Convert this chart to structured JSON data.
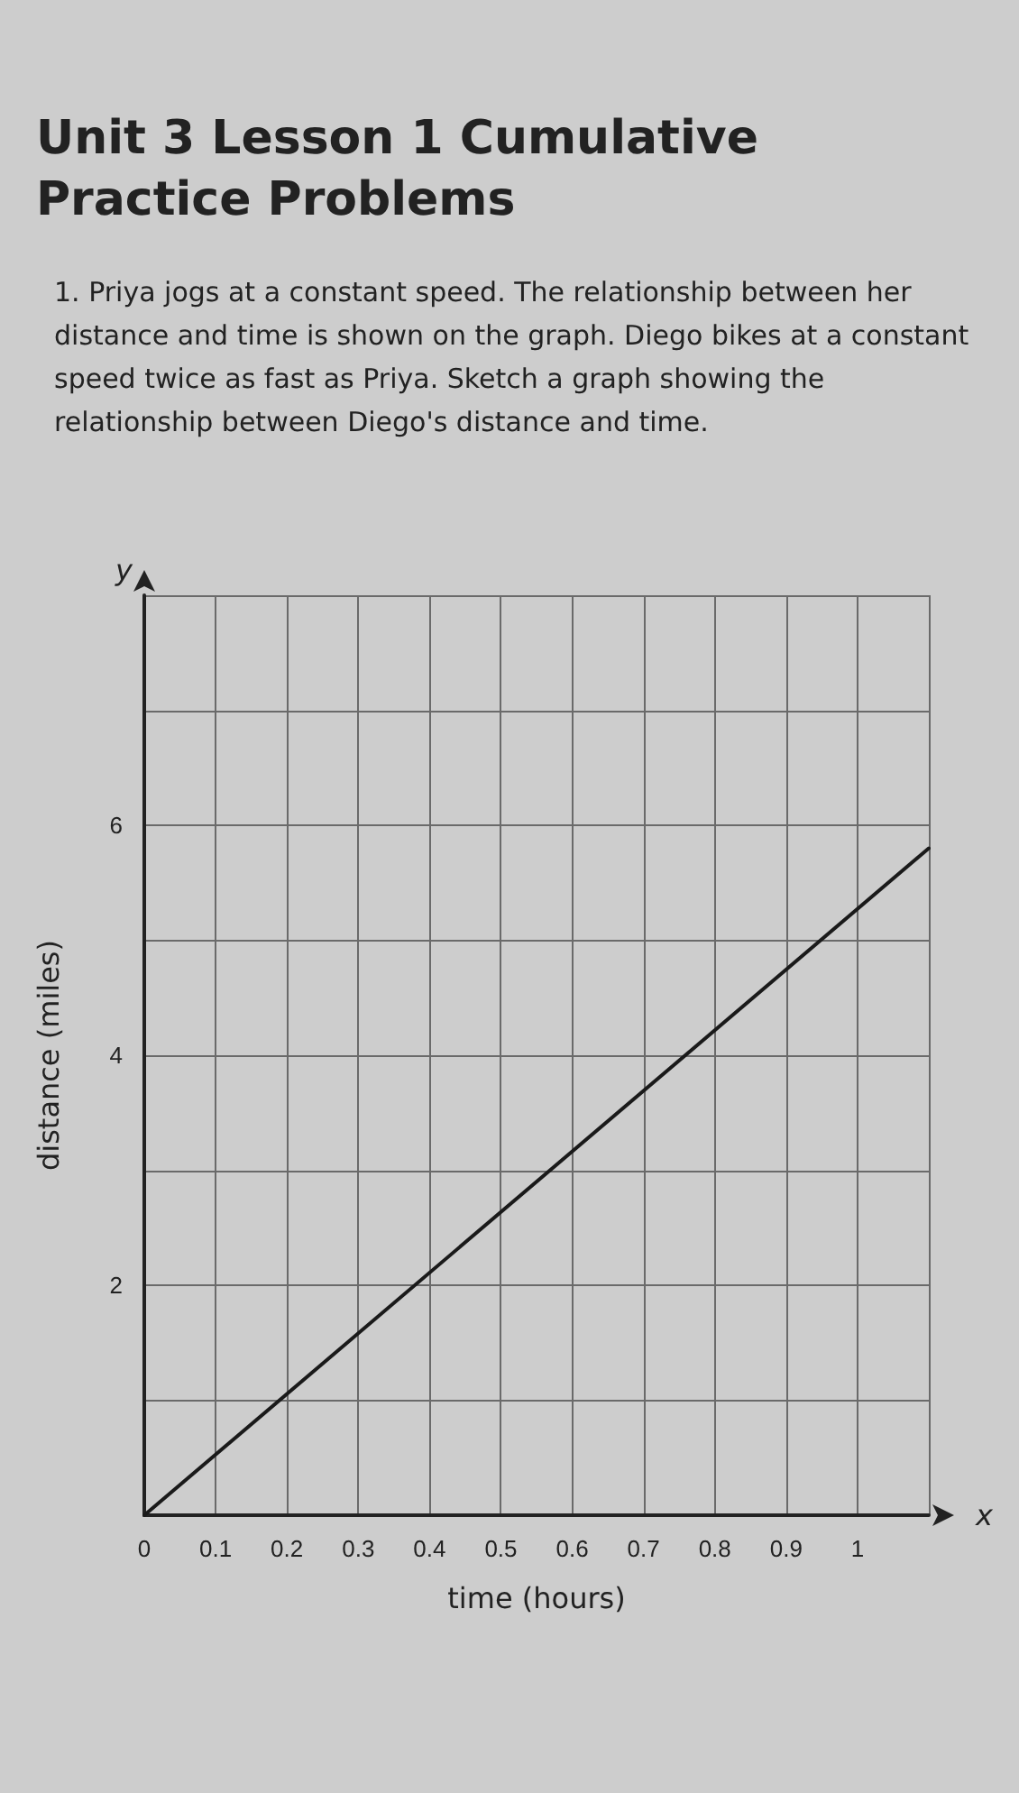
{
  "chart_data": {
    "type": "line",
    "title": "Unit 3 Lesson 1 Cumulative Practice Problems",
    "subtitle": "1. Priya jogs at a constant speed. The relationship between her distance and time is shown on the graph. Diego bikes at a constant speed twice as fast as Priya. Sketch a graph showing the relationship between Diego's distance and time.",
    "xlabel": "time (hours)",
    "ylabel": "distance (miles)",
    "annotations": [
      "x",
      "y"
    ],
    "x": [
      0,
      1.1
    ],
    "series": [
      {
        "color": "#1a1a1a",
        "values": [
          0,
          5.8
        ]
      }
    ],
    "xlim": [
      0,
      1.1
    ],
    "xticks": [
      0,
      0.1,
      0.2,
      0.3,
      0.4,
      0.5,
      0.6,
      0.7,
      0.8,
      0.9,
      1,
      {
        "value": 1.1,
        "label": null
      }
    ],
    "ylim": [
      0,
      8
    ],
    "yticks": [
      {
        "value": 0,
        "label": null
      },
      {
        "value": 1,
        "label": null
      },
      2,
      {
        "value": 3,
        "label": null
      },
      4,
      {
        "value": 5,
        "label": null
      },
      6,
      {
        "value": 7,
        "label": null
      },
      {
        "value": 8,
        "label": null
      }
    ],
    "grid": true,
    "marker": "none",
    "line_style": "solid"
  }
}
